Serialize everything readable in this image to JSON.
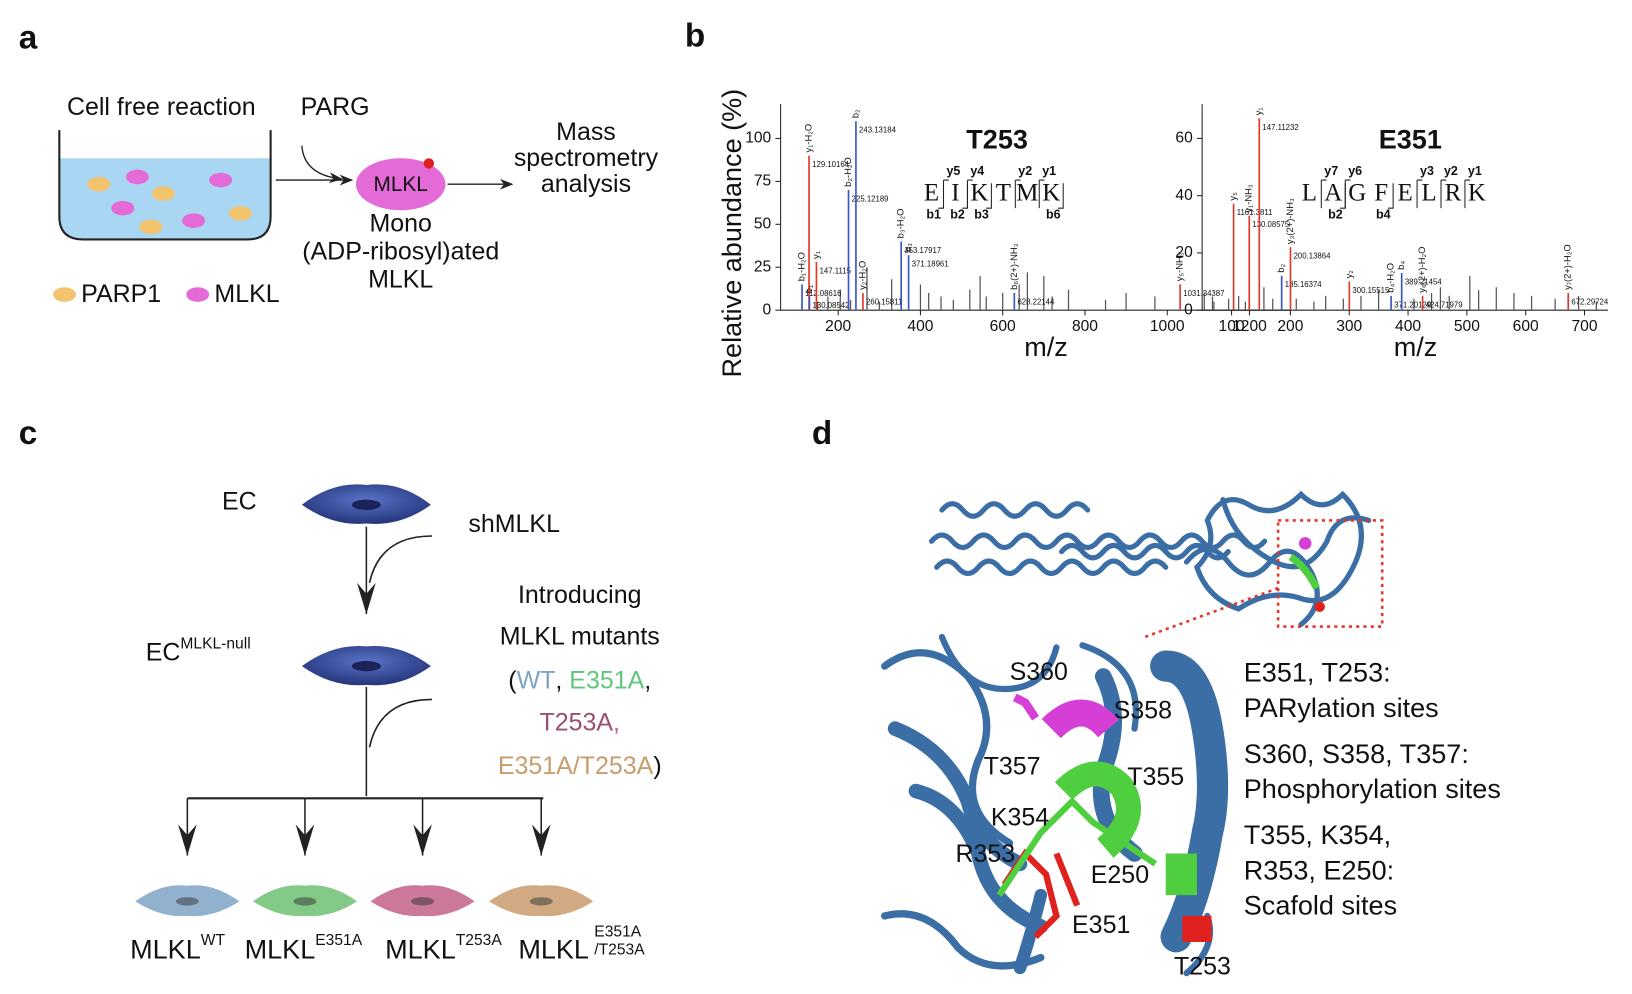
{
  "panel_labels": [
    "a",
    "b",
    "c",
    "d"
  ],
  "panel_a": {
    "vessel_label": "Cell free reaction",
    "enzyme": "PARG",
    "protein": "MLKL",
    "product": [
      "Mono",
      "(ADP-ribosyl)ated",
      "MLKL"
    ],
    "output": [
      "Mass",
      "spectrometry",
      "analysis"
    ],
    "legend": [
      "PARP1",
      "MLKL"
    ]
  },
  "chart_data": [
    {
      "type": "spectrum",
      "title": "T253",
      "title_color": "#e0392b",
      "ylabel": "Relative abundance (%)",
      "xlabel": "m/z",
      "xlim": [
        60,
        1300
      ],
      "xticks": [
        200,
        400,
        600,
        800,
        1000,
        1200
      ],
      "ylim": [
        0,
        120
      ],
      "yticks": [
        0,
        25,
        50,
        75,
        100
      ],
      "peptide": [
        "E",
        "I",
        "K",
        "T",
        "M",
        "K"
      ],
      "peptide_colors": [
        "#111",
        "#111",
        "#111",
        "#c46a1a",
        "#111",
        "#111"
      ],
      "y_ions": [
        null,
        "y5",
        "y4",
        null,
        "y2",
        "y1"
      ],
      "b_ions": [
        "b1",
        "b2",
        "b3",
        null,
        null,
        "b6"
      ],
      "peaks": {
        "x": [
          112.08616,
          129.10164,
          130.08542,
          147.1115,
          225.12189,
          243.13184,
          260.15811,
          353.17917,
          371.18961,
          628.22144,
          1031.34387,
          1161.3811
        ],
        "values": [
          15,
          90,
          8,
          28,
          70,
          110,
          10,
          40,
          32,
          10,
          15,
          62
        ],
        "colors": [
          "#3a56c9",
          "#e0392b",
          "#3a56c9",
          "#e0392b",
          "#3a56c9",
          "#3a56c9",
          "#e0392b",
          "#3a56c9",
          "#3a56c9",
          "#3a56c9",
          "#e0392b",
          "#e0392b"
        ],
        "ions": [
          "b₁-H₂O",
          "y₁-H₂O",
          "b₁",
          "y₁",
          "b₂-H₂O",
          "b₂",
          "y₂-H₂O",
          "b₃-H₂O",
          "b₃",
          "b₆(2+)-NH₃",
          "y₅-NH₃",
          "y₅"
        ]
      },
      "background": {
        "color": "#555555",
        "x": [
          150,
          175,
          205,
          230,
          270,
          300,
          330,
          400,
          420,
          450,
          480,
          520,
          545,
          560,
          600,
          640,
          660,
          700,
          720,
          760,
          850,
          900,
          970,
          1090,
          1110,
          1190
        ],
        "values": [
          5,
          8,
          12,
          6,
          25,
          5,
          18,
          15,
          10,
          8,
          6,
          12,
          20,
          8,
          10,
          15,
          22,
          20,
          8,
          12,
          6,
          10,
          8,
          10,
          8,
          5
        ]
      }
    },
    {
      "type": "spectrum",
      "title": "E351",
      "title_color": "#e0392b",
      "xlabel": "m/z",
      "xlim": [
        50,
        740
      ],
      "xticks": [
        100,
        200,
        300,
        400,
        500,
        600,
        700
      ],
      "ylim": [
        0,
        72
      ],
      "yticks": [
        0,
        20,
        40,
        60
      ],
      "peptide": [
        "L",
        "A",
        "G",
        "F",
        "E",
        "L",
        "R",
        "K"
      ],
      "peptide_colors": [
        "#111",
        "#111",
        "#111",
        "#111",
        "#c46a1a",
        "#111",
        "#111",
        "#111"
      ],
      "y_ions": [
        null,
        "y7",
        "y6",
        null,
        null,
        "y3",
        "y2",
        "y1"
      ],
      "b_ions": [
        null,
        "b2",
        null,
        "b4",
        null,
        null,
        null,
        null
      ],
      "peaks": {
        "x": [
          130.08575,
          147.11232,
          185.16374,
          200.13864,
          300.15515,
          371.20129,
          389.21454,
          424.71979,
          672.29724
        ],
        "values": [
          33,
          67,
          12,
          22,
          10,
          5,
          13,
          5,
          6
        ],
        "colors": [
          "#e0392b",
          "#e0392b",
          "#3a56c9",
          "#e0392b",
          "#e0392b",
          "#3a56c9",
          "#3a56c9",
          "#e0392b",
          "#e0392b"
        ],
        "ions": [
          "y₁-NH₃",
          "y₁",
          "b₂",
          "y₃(2+)-NH₃",
          "y₂",
          "b₄-H₂O",
          "b₄",
          "y₆(2+)-H₂O",
          "y₇(2+)-H₂O"
        ]
      },
      "background": {
        "color": "#555555",
        "x": [
          70,
          95,
          112,
          155,
          170,
          210,
          240,
          260,
          290,
          320,
          350,
          410,
          440,
          455,
          470,
          505,
          520,
          550,
          580,
          610,
          650,
          690,
          720
        ],
        "values": [
          3,
          4,
          5,
          8,
          4,
          4,
          3,
          5,
          4,
          5,
          7,
          4,
          6,
          8,
          5,
          12,
          7,
          8,
          6,
          5,
          4,
          5,
          3
        ]
      }
    }
  ],
  "panel_c": {
    "start": "EC",
    "step1": "shMLKL",
    "null_base": "EC",
    "null_sup": "MLKL-null",
    "step2": [
      "Introducing",
      "MLKL mutants"
    ],
    "mutant_lines": [
      [
        {
          "t": "(",
          "c": "#111111"
        },
        {
          "t": "WT",
          "c": "#7fa3c6"
        },
        {
          "t": ", ",
          "c": "#111111"
        },
        {
          "t": "E351A",
          "c": "#5fc77a"
        },
        {
          "t": ",",
          "c": "#111111"
        }
      ],
      [
        {
          "t": "T253A",
          "c": "#9b4f72"
        },
        {
          "t": ",",
          "c": "#c2608a"
        }
      ],
      [
        {
          "t": "E351A/T253A",
          "c": "#c99b6d"
        },
        {
          "t": ")",
          "c": "#111111"
        }
      ]
    ],
    "cells": [
      {
        "base": "MLKL",
        "sup": [
          "WT"
        ],
        "color": "#7fa3c6"
      },
      {
        "base": "MLKL",
        "sup": [
          "E351A"
        ],
        "color": "#6dbf72"
      },
      {
        "base": "MLKL",
        "sup": [
          "T253A"
        ],
        "color": "#c2608a"
      },
      {
        "base": "MLKL",
        "sup": [
          "E351A",
          "/T253A"
        ],
        "color": "#c99b6d"
      }
    ]
  },
  "panel_d": {
    "residues": [
      "S360",
      "S358",
      "T357",
      "T355",
      "K354",
      "R353",
      "E250",
      "E351",
      "T253"
    ],
    "notes": [
      {
        "lines": [
          "E351, T253:",
          "PARylation sites"
        ],
        "color": "#e0392b"
      },
      {
        "lines": [
          "S360, S358, T357:",
          "Phosphorylation sites"
        ],
        "color": "#d63fd6"
      },
      {
        "lines": [
          "T355, K354,",
          "R353, E250:",
          "Scafold sites"
        ],
        "color": "#4fcf3f"
      }
    ]
  }
}
